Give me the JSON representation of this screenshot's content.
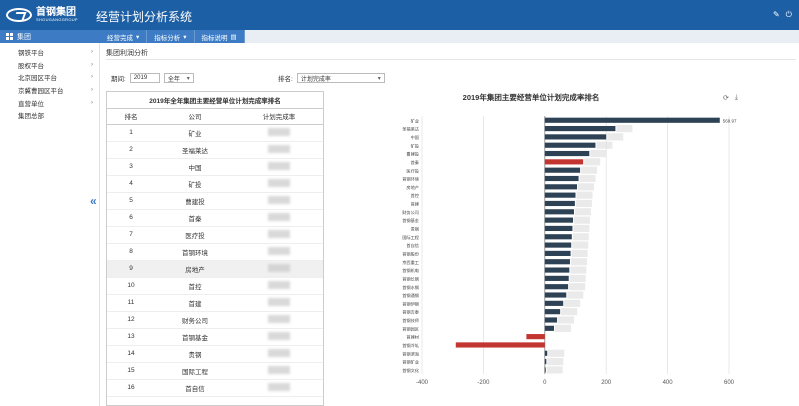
{
  "app": {
    "logo_cn": "首钢集团",
    "logo_en": "SHOUGANGGROUP",
    "title": "经营计划分析系统",
    "top_icons": [
      "edit-icon",
      "power-icon"
    ]
  },
  "home_tab": "集团",
  "nav_tabs": [
    {
      "label": "经营完成",
      "icon": "chevron-down-icon"
    },
    {
      "label": "指标分析",
      "icon": "chevron-down-icon"
    },
    {
      "label": "指标说明",
      "icon": "doc-icon"
    }
  ],
  "sidebar": {
    "items": [
      {
        "label": "钢铁平台",
        "arrow": "›"
      },
      {
        "label": "股权平台",
        "arrow": "›"
      },
      {
        "label": "北京园区平台",
        "arrow": "›"
      },
      {
        "label": "京冀曹园区平台",
        "arrow": "›"
      },
      {
        "label": "直营单位",
        "arrow": "›"
      },
      {
        "label": "集团总部",
        "arrow": ""
      }
    ],
    "collapse_glyph": "«"
  },
  "content": {
    "title": "集团利润分析",
    "filters": {
      "year_label": "期间:",
      "year_value": "2019",
      "period_value": "全年",
      "rank_label": "排名:",
      "rank_value": "计划完成率"
    }
  },
  "table": {
    "caption": "2019年全年集团主要经营单位计划完成率排名",
    "columns": [
      "排名",
      "公司",
      "计划完成率"
    ],
    "rows": [
      {
        "rank": "1",
        "company": "矿业"
      },
      {
        "rank": "2",
        "company": "圣福莱达"
      },
      {
        "rank": "3",
        "company": "中国"
      },
      {
        "rank": "4",
        "company": "矿投"
      },
      {
        "rank": "5",
        "company": "曹建投"
      },
      {
        "rank": "6",
        "company": "首秦"
      },
      {
        "rank": "7",
        "company": "医疗投"
      },
      {
        "rank": "8",
        "company": "首钢环境"
      },
      {
        "rank": "9",
        "company": "房地产"
      },
      {
        "rank": "10",
        "company": "首控"
      },
      {
        "rank": "11",
        "company": "首建"
      },
      {
        "rank": "12",
        "company": "财务公司"
      },
      {
        "rank": "13",
        "company": "首钢基金"
      },
      {
        "rank": "14",
        "company": "贵钢"
      },
      {
        "rank": "15",
        "company": "国际工程"
      },
      {
        "rank": "16",
        "company": "首自信"
      }
    ],
    "highlight_row": 8
  },
  "chart_data": {
    "type": "bar",
    "orientation": "horizontal",
    "title": "2019年集团主要经营单位计划完成率排名",
    "icons": [
      "refresh-icon",
      "download-icon"
    ],
    "xlim": [
      -400,
      600
    ],
    "x_ticks": [
      "-400",
      "-200",
      "0",
      "200",
      "400",
      "600"
    ],
    "grid": true,
    "categories": [
      "矿业",
      "圣福莱达",
      "中国",
      "矿投",
      "曹建投",
      "首秦",
      "医疗投",
      "首钢环境",
      "房地产",
      "首控",
      "首建",
      "财务公司",
      "首钢基金",
      "贵钢",
      "国际工程",
      "首自信",
      "首钢股份",
      "京西重工",
      "首钢机电",
      "首钢长钢",
      "首钢水钢",
      "首钢通钢",
      "首钢伊钢",
      "首钢吉泰",
      "首钢技师",
      "首钢园区",
      "首建材",
      "首钢冷轧",
      "首钢滨海",
      "首钢矿业",
      "首钢文化"
    ],
    "values": [
      569.97,
      230,
      200,
      165,
      145,
      125,
      115,
      110,
      105,
      100,
      98,
      95,
      92,
      90,
      88,
      86,
      84,
      82,
      80,
      78,
      76,
      70,
      60,
      50,
      40,
      30,
      -60,
      -290,
      8,
      5,
      3
    ],
    "value_labels": [
      "569.97",
      "",
      "",
      "",
      "",
      "",
      "",
      "",
      "",
      "",
      "",
      "",
      "",
      "",
      "",
      "",
      "",
      "",
      "",
      "",
      "",
      "",
      "",
      "",
      "",
      "",
      "",
      "",
      "",
      "",
      ""
    ],
    "highlight_index": 5,
    "colors": {
      "positive": "#2e4256",
      "negative": "#c23531",
      "highlight": "#c23531",
      "obscured": "#f2c9c9"
    }
  }
}
